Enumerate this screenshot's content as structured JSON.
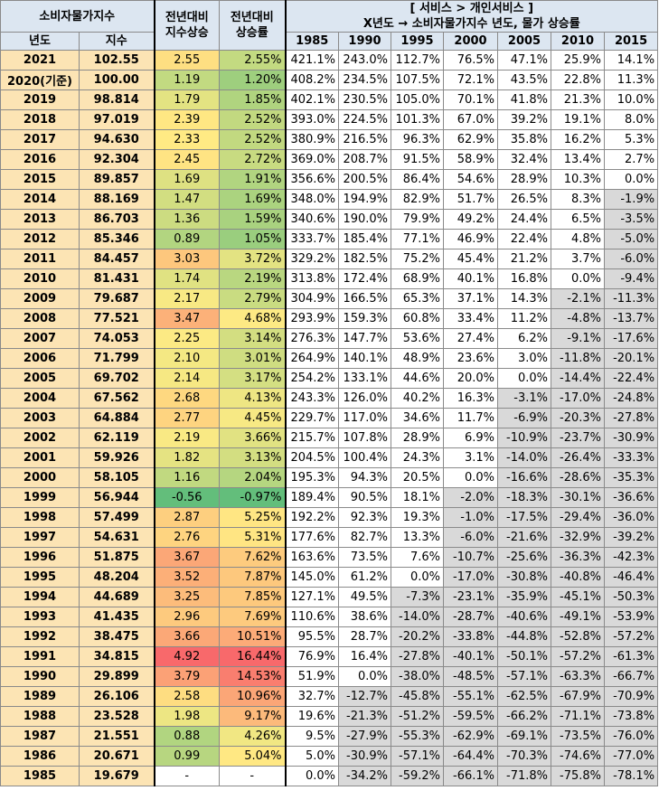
{
  "header": {
    "cpi_title": "소비자물가지수",
    "year_label": "년도",
    "index_label": "지수",
    "yoy_index_label_1": "전년대비",
    "yoy_index_label_2": "지수상승",
    "yoy_rate_label_1": "전년대비",
    "yoy_rate_label_2": "상승률",
    "section_title": "[ 서비스 > 개인서비스 ]",
    "section_subtitle": "X년도 → 소비자물가지수 년도, 물가 상승률",
    "base_years": [
      "1985",
      "1990",
      "1995",
      "2000",
      "2005",
      "2010",
      "2015"
    ]
  },
  "colors": {
    "header_bg": "#dce6f1",
    "year_bg": "#fce4b4",
    "negative_bg": "#d9d9d9",
    "heat_low": "#63be7b",
    "heat_mid": "#ffeb84",
    "heat_high": "#f8696b"
  },
  "rows": [
    {
      "year": "2021",
      "index": "102.55",
      "yoy_idx": "2.55",
      "yoy_rate": "2.55%",
      "yoy_idx_num": 2.55,
      "yoy_rate_num": 2.55,
      "cols": [
        "421.1%",
        "243.0%",
        "112.7%",
        "76.5%",
        "47.1%",
        "25.9%",
        "14.1%"
      ]
    },
    {
      "year": "2020(기준)",
      "index": "100.00",
      "yoy_idx": "1.19",
      "yoy_rate": "1.20%",
      "yoy_idx_num": 1.19,
      "yoy_rate_num": 1.2,
      "cols": [
        "408.2%",
        "234.5%",
        "107.5%",
        "72.1%",
        "43.5%",
        "22.8%",
        "11.3%"
      ]
    },
    {
      "year": "2019",
      "index": "98.814",
      "yoy_idx": "1.79",
      "yoy_rate": "1.85%",
      "yoy_idx_num": 1.79,
      "yoy_rate_num": 1.85,
      "cols": [
        "402.1%",
        "230.5%",
        "105.0%",
        "70.1%",
        "41.8%",
        "21.3%",
        "10.0%"
      ]
    },
    {
      "year": "2018",
      "index": "97.019",
      "yoy_idx": "2.39",
      "yoy_rate": "2.52%",
      "yoy_idx_num": 2.39,
      "yoy_rate_num": 2.52,
      "cols": [
        "393.0%",
        "224.5%",
        "101.3%",
        "67.0%",
        "39.2%",
        "19.1%",
        "8.0%"
      ]
    },
    {
      "year": "2017",
      "index": "94.630",
      "yoy_idx": "2.33",
      "yoy_rate": "2.52%",
      "yoy_idx_num": 2.33,
      "yoy_rate_num": 2.52,
      "cols": [
        "380.9%",
        "216.5%",
        "96.3%",
        "62.9%",
        "35.8%",
        "16.2%",
        "5.3%"
      ]
    },
    {
      "year": "2016",
      "index": "92.304",
      "yoy_idx": "2.45",
      "yoy_rate": "2.72%",
      "yoy_idx_num": 2.45,
      "yoy_rate_num": 2.72,
      "cols": [
        "369.0%",
        "208.7%",
        "91.5%",
        "58.9%",
        "32.4%",
        "13.4%",
        "2.7%"
      ]
    },
    {
      "year": "2015",
      "index": "89.857",
      "yoy_idx": "1.69",
      "yoy_rate": "1.91%",
      "yoy_idx_num": 1.69,
      "yoy_rate_num": 1.91,
      "cols": [
        "356.6%",
        "200.5%",
        "86.4%",
        "54.6%",
        "28.9%",
        "10.3%",
        "0.0%"
      ]
    },
    {
      "year": "2014",
      "index": "88.169",
      "yoy_idx": "1.47",
      "yoy_rate": "1.69%",
      "yoy_idx_num": 1.47,
      "yoy_rate_num": 1.69,
      "cols": [
        "348.0%",
        "194.9%",
        "82.9%",
        "51.7%",
        "26.5%",
        "8.3%",
        "-1.9%"
      ]
    },
    {
      "year": "2013",
      "index": "86.703",
      "yoy_idx": "1.36",
      "yoy_rate": "1.59%",
      "yoy_idx_num": 1.36,
      "yoy_rate_num": 1.59,
      "cols": [
        "340.6%",
        "190.0%",
        "79.9%",
        "49.2%",
        "24.4%",
        "6.5%",
        "-3.5%"
      ]
    },
    {
      "year": "2012",
      "index": "85.346",
      "yoy_idx": "0.89",
      "yoy_rate": "1.05%",
      "yoy_idx_num": 0.89,
      "yoy_rate_num": 1.05,
      "cols": [
        "333.7%",
        "185.4%",
        "77.1%",
        "46.9%",
        "22.4%",
        "4.8%",
        "-5.0%"
      ]
    },
    {
      "year": "2011",
      "index": "84.457",
      "yoy_idx": "3.03",
      "yoy_rate": "3.72%",
      "yoy_idx_num": 3.03,
      "yoy_rate_num": 3.72,
      "cols": [
        "329.2%",
        "182.5%",
        "75.2%",
        "45.4%",
        "21.2%",
        "3.7%",
        "-6.0%"
      ]
    },
    {
      "year": "2010",
      "index": "81.431",
      "yoy_idx": "1.74",
      "yoy_rate": "2.19%",
      "yoy_idx_num": 1.74,
      "yoy_rate_num": 2.19,
      "cols": [
        "313.8%",
        "172.4%",
        "68.9%",
        "40.1%",
        "16.8%",
        "0.0%",
        "-9.4%"
      ]
    },
    {
      "year": "2009",
      "index": "79.687",
      "yoy_idx": "2.17",
      "yoy_rate": "2.79%",
      "yoy_idx_num": 2.17,
      "yoy_rate_num": 2.79,
      "cols": [
        "304.9%",
        "166.5%",
        "65.3%",
        "37.1%",
        "14.3%",
        "-2.1%",
        "-11.3%"
      ]
    },
    {
      "year": "2008",
      "index": "77.521",
      "yoy_idx": "3.47",
      "yoy_rate": "4.68%",
      "yoy_idx_num": 3.47,
      "yoy_rate_num": 4.68,
      "cols": [
        "293.9%",
        "159.3%",
        "60.8%",
        "33.4%",
        "11.2%",
        "-4.8%",
        "-13.7%"
      ]
    },
    {
      "year": "2007",
      "index": "74.053",
      "yoy_idx": "2.25",
      "yoy_rate": "3.14%",
      "yoy_idx_num": 2.25,
      "yoy_rate_num": 3.14,
      "cols": [
        "276.3%",
        "147.7%",
        "53.6%",
        "27.4%",
        "6.2%",
        "-9.1%",
        "-17.6%"
      ]
    },
    {
      "year": "2006",
      "index": "71.799",
      "yoy_idx": "2.10",
      "yoy_rate": "3.01%",
      "yoy_idx_num": 2.1,
      "yoy_rate_num": 3.01,
      "cols": [
        "264.9%",
        "140.1%",
        "48.9%",
        "23.6%",
        "3.0%",
        "-11.8%",
        "-20.1%"
      ]
    },
    {
      "year": "2005",
      "index": "69.702",
      "yoy_idx": "2.14",
      "yoy_rate": "3.17%",
      "yoy_idx_num": 2.14,
      "yoy_rate_num": 3.17,
      "cols": [
        "254.2%",
        "133.1%",
        "44.6%",
        "20.0%",
        "0.0%",
        "-14.4%",
        "-22.4%"
      ]
    },
    {
      "year": "2004",
      "index": "67.562",
      "yoy_idx": "2.68",
      "yoy_rate": "4.13%",
      "yoy_idx_num": 2.68,
      "yoy_rate_num": 4.13,
      "cols": [
        "243.3%",
        "126.0%",
        "40.2%",
        "16.3%",
        "-3.1%",
        "-17.0%",
        "-24.8%"
      ]
    },
    {
      "year": "2003",
      "index": "64.884",
      "yoy_idx": "2.77",
      "yoy_rate": "4.45%",
      "yoy_idx_num": 2.77,
      "yoy_rate_num": 4.45,
      "cols": [
        "229.7%",
        "117.0%",
        "34.6%",
        "11.7%",
        "-6.9%",
        "-20.3%",
        "-27.8%"
      ]
    },
    {
      "year": "2002",
      "index": "62.119",
      "yoy_idx": "2.19",
      "yoy_rate": "3.66%",
      "yoy_idx_num": 2.19,
      "yoy_rate_num": 3.66,
      "cols": [
        "215.7%",
        "107.8%",
        "28.9%",
        "6.9%",
        "-10.9%",
        "-23.7%",
        "-30.9%"
      ]
    },
    {
      "year": "2001",
      "index": "59.926",
      "yoy_idx": "1.82",
      "yoy_rate": "3.13%",
      "yoy_idx_num": 1.82,
      "yoy_rate_num": 3.13,
      "cols": [
        "204.5%",
        "100.4%",
        "24.3%",
        "3.1%",
        "-14.0%",
        "-26.4%",
        "-33.3%"
      ]
    },
    {
      "year": "2000",
      "index": "58.105",
      "yoy_idx": "1.16",
      "yoy_rate": "2.04%",
      "yoy_idx_num": 1.16,
      "yoy_rate_num": 2.04,
      "cols": [
        "195.3%",
        "94.3%",
        "20.5%",
        "0.0%",
        "-16.6%",
        "-28.6%",
        "-35.3%"
      ]
    },
    {
      "year": "1999",
      "index": "56.944",
      "yoy_idx": "-0.56",
      "yoy_rate": "-0.97%",
      "yoy_idx_num": -0.56,
      "yoy_rate_num": -0.97,
      "cols": [
        "189.4%",
        "90.5%",
        "18.1%",
        "-2.0%",
        "-18.3%",
        "-30.1%",
        "-36.6%"
      ]
    },
    {
      "year": "1998",
      "index": "57.499",
      "yoy_idx": "2.87",
      "yoy_rate": "5.25%",
      "yoy_idx_num": 2.87,
      "yoy_rate_num": 5.25,
      "cols": [
        "192.2%",
        "92.3%",
        "19.3%",
        "-1.0%",
        "-17.5%",
        "-29.4%",
        "-36.0%"
      ]
    },
    {
      "year": "1997",
      "index": "54.631",
      "yoy_idx": "2.76",
      "yoy_rate": "5.31%",
      "yoy_idx_num": 2.76,
      "yoy_rate_num": 5.31,
      "cols": [
        "177.6%",
        "82.7%",
        "13.3%",
        "-6.0%",
        "-21.6%",
        "-32.9%",
        "-39.2%"
      ]
    },
    {
      "year": "1996",
      "index": "51.875",
      "yoy_idx": "3.67",
      "yoy_rate": "7.62%",
      "yoy_idx_num": 3.67,
      "yoy_rate_num": 7.62,
      "cols": [
        "163.6%",
        "73.5%",
        "7.6%",
        "-10.7%",
        "-25.6%",
        "-36.3%",
        "-42.3%"
      ]
    },
    {
      "year": "1995",
      "index": "48.204",
      "yoy_idx": "3.52",
      "yoy_rate": "7.87%",
      "yoy_idx_num": 3.52,
      "yoy_rate_num": 7.87,
      "cols": [
        "145.0%",
        "61.2%",
        "0.0%",
        "-17.0%",
        "-30.8%",
        "-40.8%",
        "-46.4%"
      ]
    },
    {
      "year": "1994",
      "index": "44.689",
      "yoy_idx": "3.25",
      "yoy_rate": "7.85%",
      "yoy_idx_num": 3.25,
      "yoy_rate_num": 7.85,
      "cols": [
        "127.1%",
        "49.5%",
        "-7.3%",
        "-23.1%",
        "-35.9%",
        "-45.1%",
        "-50.3%"
      ]
    },
    {
      "year": "1993",
      "index": "41.435",
      "yoy_idx": "2.96",
      "yoy_rate": "7.69%",
      "yoy_idx_num": 2.96,
      "yoy_rate_num": 7.69,
      "cols": [
        "110.6%",
        "38.6%",
        "-14.0%",
        "-28.7%",
        "-40.6%",
        "-49.1%",
        "-53.9%"
      ]
    },
    {
      "year": "1992",
      "index": "38.475",
      "yoy_idx": "3.66",
      "yoy_rate": "10.51%",
      "yoy_idx_num": 3.66,
      "yoy_rate_num": 10.51,
      "cols": [
        "95.5%",
        "28.7%",
        "-20.2%",
        "-33.8%",
        "-44.8%",
        "-52.8%",
        "-57.2%"
      ]
    },
    {
      "year": "1991",
      "index": "34.815",
      "yoy_idx": "4.92",
      "yoy_rate": "16.44%",
      "yoy_idx_num": 4.92,
      "yoy_rate_num": 16.44,
      "cols": [
        "76.9%",
        "16.4%",
        "-27.8%",
        "-40.1%",
        "-50.1%",
        "-57.2%",
        "-61.3%"
      ]
    },
    {
      "year": "1990",
      "index": "29.899",
      "yoy_idx": "3.79",
      "yoy_rate": "14.53%",
      "yoy_idx_num": 3.79,
      "yoy_rate_num": 14.53,
      "cols": [
        "51.9%",
        "0.0%",
        "-38.0%",
        "-48.5%",
        "-57.1%",
        "-63.3%",
        "-66.7%"
      ]
    },
    {
      "year": "1989",
      "index": "26.106",
      "yoy_idx": "2.58",
      "yoy_rate": "10.96%",
      "yoy_idx_num": 2.58,
      "yoy_rate_num": 10.96,
      "cols": [
        "32.7%",
        "-12.7%",
        "-45.8%",
        "-55.1%",
        "-62.5%",
        "-67.9%",
        "-70.9%"
      ]
    },
    {
      "year": "1988",
      "index": "23.528",
      "yoy_idx": "1.98",
      "yoy_rate": "9.17%",
      "yoy_idx_num": 1.98,
      "yoy_rate_num": 9.17,
      "cols": [
        "19.6%",
        "-21.3%",
        "-51.2%",
        "-59.5%",
        "-66.2%",
        "-71.1%",
        "-73.8%"
      ]
    },
    {
      "year": "1987",
      "index": "21.551",
      "yoy_idx": "0.88",
      "yoy_rate": "4.26%",
      "yoy_idx_num": 0.88,
      "yoy_rate_num": 4.26,
      "cols": [
        "9.5%",
        "-27.9%",
        "-55.3%",
        "-62.9%",
        "-69.1%",
        "-73.5%",
        "-76.0%"
      ]
    },
    {
      "year": "1986",
      "index": "20.671",
      "yoy_idx": "0.99",
      "yoy_rate": "5.04%",
      "yoy_idx_num": 0.99,
      "yoy_rate_num": 5.04,
      "cols": [
        "5.0%",
        "-30.9%",
        "-57.1%",
        "-64.4%",
        "-70.3%",
        "-74.6%",
        "-77.0%"
      ]
    },
    {
      "year": "1985",
      "index": "19.679",
      "yoy_idx": "-",
      "yoy_rate": "-",
      "yoy_idx_num": null,
      "yoy_rate_num": null,
      "cols": [
        "0.0%",
        "-34.2%",
        "-59.2%",
        "-66.1%",
        "-71.8%",
        "-75.8%",
        "-78.1%"
      ]
    }
  ]
}
